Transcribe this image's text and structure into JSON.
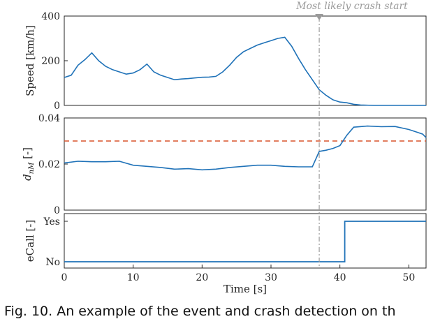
{
  "annotation": "Most likely crash start",
  "caption": "Fig. 10. An example of the event and crash detection on th",
  "colors": {
    "line": "#1f72b8",
    "threshold": "#d9532b",
    "marker": "#9a9a9a"
  },
  "chart_data": [
    {
      "type": "line",
      "ylabel": "Speed [km/h]",
      "xlim": [
        0,
        52.5
      ],
      "ylim": [
        0,
        400
      ],
      "yticks": [
        0,
        200,
        400
      ],
      "grid": false,
      "series": [
        {
          "x": [
            0,
            1,
            2,
            3,
            4,
            5,
            6,
            7,
            8,
            9,
            10,
            11,
            12,
            13,
            14,
            15,
            16,
            17,
            18,
            19,
            20,
            21,
            22,
            23,
            24,
            25,
            26,
            27,
            28,
            29,
            30,
            31,
            32,
            33,
            34,
            35,
            36,
            37,
            38,
            39,
            40,
            41,
            42,
            43,
            45,
            50,
            52.5
          ],
          "y": [
            125,
            135,
            180,
            205,
            235,
            200,
            175,
            160,
            150,
            140,
            145,
            160,
            185,
            150,
            135,
            125,
            115,
            118,
            120,
            123,
            126,
            127,
            130,
            150,
            180,
            215,
            240,
            255,
            270,
            280,
            290,
            300,
            305,
            265,
            210,
            160,
            115,
            70,
            45,
            25,
            15,
            12,
            5,
            2,
            0,
            0,
            0
          ]
        }
      ]
    },
    {
      "type": "line",
      "ylabel": "d_nM [-]",
      "xlim": [
        0,
        52.5
      ],
      "ylim": [
        0,
        0.04
      ],
      "yticks": [
        0,
        0.02,
        0.04
      ],
      "ytick_labels": [
        "0",
        "0.02",
        "0.04"
      ],
      "threshold": 0.03,
      "grid": false,
      "series": [
        {
          "x": [
            0,
            2,
            4,
            6,
            8,
            10,
            12,
            14,
            16,
            18,
            20,
            22,
            24,
            26,
            28,
            30,
            32,
            34,
            36,
            37,
            38,
            39,
            40,
            41,
            42,
            44,
            46,
            48,
            50,
            51,
            52,
            52.5
          ],
          "y": [
            0.0205,
            0.0212,
            0.021,
            0.021,
            0.0212,
            0.0195,
            0.019,
            0.0185,
            0.0178,
            0.018,
            0.0175,
            0.0178,
            0.0185,
            0.019,
            0.0195,
            0.0195,
            0.019,
            0.0188,
            0.0188,
            0.0255,
            0.026,
            0.0268,
            0.028,
            0.0325,
            0.036,
            0.0365,
            0.0362,
            0.0363,
            0.035,
            0.034,
            0.033,
            0.0315
          ]
        }
      ]
    },
    {
      "type": "line",
      "xlabel": "Time [s]",
      "ylabel": "eCall [-]",
      "xlim": [
        0,
        52.5
      ],
      "xticks": [
        0,
        10,
        20,
        30,
        40,
        50
      ],
      "yticks": [
        "No",
        "Yes"
      ],
      "grid": false,
      "series": [
        {
          "x": [
            0,
            40.7,
            40.7,
            52.5
          ],
          "y": [
            "No",
            "No",
            "Yes",
            "Yes"
          ]
        }
      ]
    }
  ],
  "crash_start_x": 37
}
